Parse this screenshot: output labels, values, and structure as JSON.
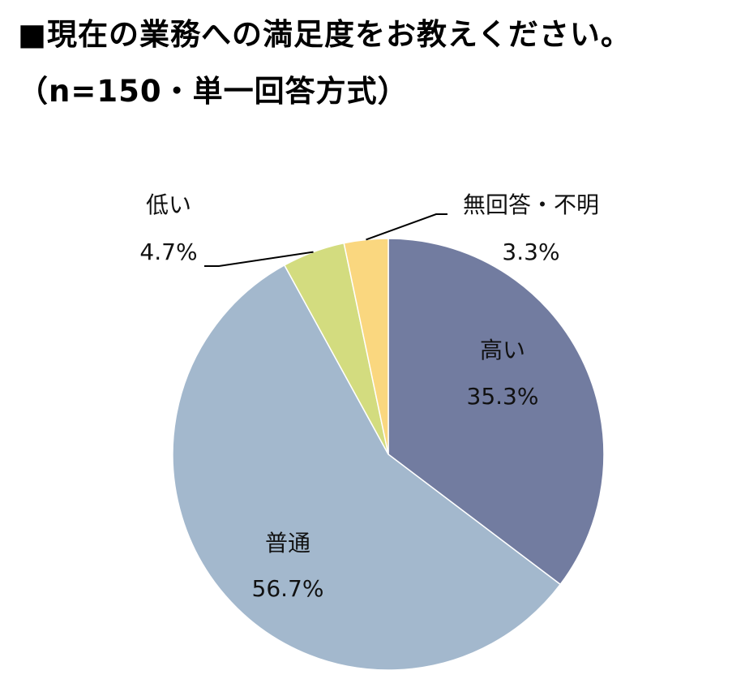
{
  "title": {
    "line1": "■現在の業務への満足度をお教えください。",
    "line2": "（n=150・単一回答方式）"
  },
  "chart_data": {
    "type": "pie",
    "start_angle_deg": 0,
    "direction": "clockwise",
    "slices": [
      {
        "label": "高い",
        "value": 35.3,
        "value_label": "35.3%",
        "color": "#727ca0"
      },
      {
        "label": "普通",
        "value": 56.7,
        "value_label": "56.7%",
        "color": "#a3b8cd"
      },
      {
        "label": "低い",
        "value": 4.7,
        "value_label": "4.7%",
        "color": "#d3dc7f"
      },
      {
        "label": "無回答・不明",
        "value": 3.3,
        "value_label": "3.3%",
        "color": "#fad77f"
      }
    ]
  }
}
